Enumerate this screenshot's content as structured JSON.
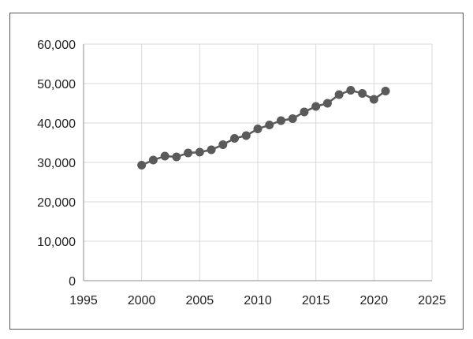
{
  "chart_data": {
    "type": "line",
    "title": "",
    "xlabel": "",
    "ylabel": "",
    "xlim": [
      1995,
      2025
    ],
    "ylim": [
      0,
      60000
    ],
    "x_ticks": [
      1995,
      2000,
      2005,
      2010,
      2015,
      2020,
      2025
    ],
    "x_tick_labels": [
      "1995",
      "2000",
      "2005",
      "2010",
      "2015",
      "2020",
      "2025"
    ],
    "y_ticks": [
      0,
      10000,
      20000,
      30000,
      40000,
      50000,
      60000
    ],
    "y_tick_labels": [
      "0",
      "10,000",
      "20,000",
      "30,000",
      "40,000",
      "50,000",
      "60,000"
    ],
    "grid": true,
    "legend": "none",
    "series": [
      {
        "color": "#5a5a5a",
        "x": [
          2000,
          2001,
          2002,
          2003,
          2004,
          2005,
          2006,
          2007,
          2008,
          2009,
          2010,
          2011,
          2012,
          2013,
          2014,
          2015,
          2016,
          2017,
          2018,
          2019,
          2020,
          2021
        ],
        "y": [
          29300,
          30600,
          31600,
          31400,
          32400,
          32600,
          33200,
          34500,
          36100,
          36800,
          38500,
          39500,
          40600,
          41100,
          42800,
          44200,
          45000,
          47200,
          48300,
          47500,
          46000,
          48100
        ]
      }
    ]
  }
}
